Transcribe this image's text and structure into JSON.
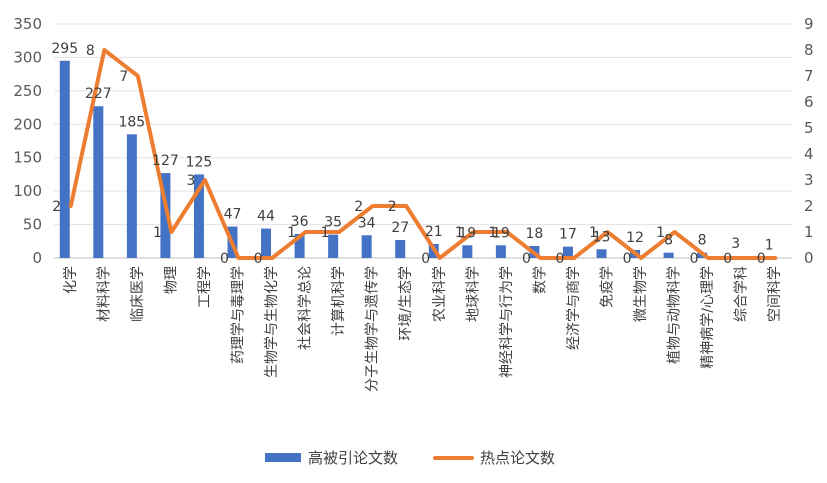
{
  "chart_data": {
    "type": "bar",
    "title": "",
    "xlabel": "",
    "ylabel": "",
    "y2label": "",
    "ylim": [
      0,
      350
    ],
    "y2lim": [
      0,
      9
    ],
    "grid": true,
    "legend_position": "bottom",
    "categories": [
      "化学",
      "材料科学",
      "临床医学",
      "物理",
      "工程学",
      "药理学与毒理学",
      "生物学与生物化学",
      "社会科学总论",
      "计算机科学",
      "分子生物学与遗传学",
      "环境/生态学",
      "农业科学",
      "地球科学",
      "神经科学与行为学",
      "数学",
      "经济学与商学",
      "免疫学",
      "微生物学",
      "植物与动物科学",
      "精神病学/心理学",
      "综合学科",
      "空间科学"
    ],
    "series": [
      {
        "name": "高被引论文数",
        "type": "bar",
        "axis": "left",
        "color": "#4472C4",
        "values": [
          295,
          227,
          185,
          127,
          125,
          47,
          44,
          36,
          35,
          34,
          27,
          21,
          19,
          19,
          18,
          17,
          13,
          12,
          8,
          8,
          3,
          1
        ]
      },
      {
        "name": "热点论文数",
        "type": "line",
        "axis": "right",
        "color": "#ED7D31",
        "values": [
          2,
          8,
          7,
          1,
          3,
          0,
          0,
          1,
          1,
          2,
          2,
          0,
          1,
          1,
          0,
          0,
          1,
          0,
          1,
          0,
          0,
          0
        ]
      }
    ],
    "yticks": [
      "0",
      "50",
      "100",
      "150",
      "200",
      "250",
      "300",
      "350"
    ],
    "y2ticks": [
      "0",
      "1",
      "2",
      "3",
      "4",
      "5",
      "6",
      "7",
      "8",
      "9"
    ]
  }
}
